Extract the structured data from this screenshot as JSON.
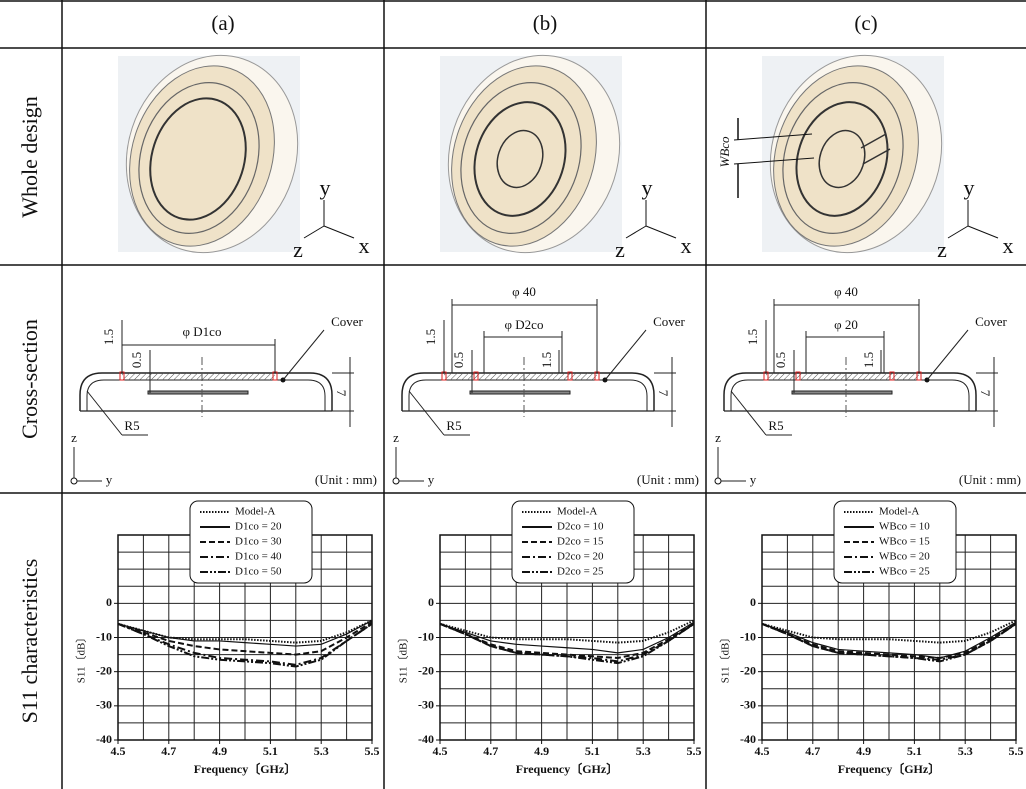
{
  "table": {
    "columns": [
      "(a)",
      "(b)",
      "(c)"
    ],
    "rows": [
      "Whole design",
      "Cross-section",
      "S11 characteristics"
    ]
  },
  "designs": [
    {
      "axes": [
        "y",
        "z",
        "x"
      ]
    },
    {
      "axes": [
        "y",
        "z",
        "x"
      ]
    },
    {
      "axes": [
        "y",
        "z",
        "x"
      ],
      "dimension": "WBco"
    }
  ],
  "cross_sections": [
    {
      "outer_dim": "φ D1co",
      "top": "1.5",
      "gap": "0.5",
      "height": "7",
      "radius": "R5",
      "cover": "Cover",
      "unit": "(Unit : mm)",
      "axis_z": "z",
      "axis_y": "y"
    },
    {
      "outer_dim": "φ 40",
      "inner_dim": "φ D2co",
      "top": "1.5",
      "gap": "0.5",
      "inner_top": "1.5",
      "height": "7",
      "radius": "R5",
      "cover": "Cover",
      "unit": "(Unit : mm)",
      "axis_z": "z",
      "axis_y": "y"
    },
    {
      "outer_dim": "φ 40",
      "inner_dim": "φ 20",
      "top": "1.5",
      "gap": "0.5",
      "inner_top": "1.5",
      "height": "7",
      "radius": "R5",
      "cover": "Cover",
      "unit": "(Unit : mm)",
      "axis_z": "z",
      "axis_y": "y"
    }
  ],
  "chart_data": [
    {
      "type": "line",
      "xlabel": "Frequency〔GHz〕",
      "ylabel": "S11〔dB〕",
      "x": [
        4.5,
        4.6,
        4.7,
        4.8,
        4.9,
        5.0,
        5.1,
        5.2,
        5.3,
        5.4,
        5.5
      ],
      "xlim": [
        4.5,
        5.5
      ],
      "xticks": [
        4.5,
        4.7,
        4.9,
        5.1,
        5.3,
        5.5
      ],
      "ylim": [
        -40,
        20
      ],
      "yticks": [
        -40,
        -30,
        -20,
        -10,
        0
      ],
      "xgrid": [
        4.5,
        4.6,
        4.7,
        4.8,
        4.9,
        5.0,
        5.1,
        5.2,
        5.3,
        5.4,
        5.5
      ],
      "ygrid": [
        -40,
        -35,
        -30,
        -25,
        -20,
        -15,
        -10,
        -5,
        0,
        5,
        10,
        15,
        20
      ],
      "series": [
        {
          "name": "Model-A",
          "color": "#111111",
          "style": "dotted",
          "values": [
            -6,
            -8,
            -10,
            -10.5,
            -10.5,
            -10.5,
            -11,
            -11.5,
            -11,
            -8.5,
            -5
          ]
        },
        {
          "name": "D1co = 20",
          "color": "#111111",
          "style": "solid",
          "values": [
            -6,
            -8,
            -10,
            -11,
            -11,
            -11.5,
            -12,
            -12.5,
            -12,
            -9,
            -5
          ]
        },
        {
          "name": "D1co = 30",
          "color": "#111111",
          "style": "dashed",
          "values": [
            -6,
            -8.5,
            -11,
            -12.5,
            -13.5,
            -14,
            -14.5,
            -15,
            -14,
            -10,
            -5.5
          ]
        },
        {
          "name": "D1co = 40",
          "color": "#111111",
          "style": "dashdot",
          "values": [
            -6,
            -9,
            -12,
            -14.5,
            -16,
            -16.5,
            -17,
            -18,
            -16,
            -11,
            -6
          ]
        },
        {
          "name": "D1co = 50",
          "color": "#111111",
          "style": "dashdotdot",
          "values": [
            -6,
            -9,
            -12.5,
            -15.5,
            -16.5,
            -17,
            -17.5,
            -18.5,
            -16.5,
            -11,
            -6
          ]
        }
      ]
    },
    {
      "type": "line",
      "xlabel": "Frequency〔GHz〕",
      "ylabel": "S11〔dB〕",
      "x": [
        4.5,
        4.6,
        4.7,
        4.8,
        4.9,
        5.0,
        5.1,
        5.2,
        5.3,
        5.4,
        5.5
      ],
      "xlim": [
        4.5,
        5.5
      ],
      "xticks": [
        4.5,
        4.7,
        4.9,
        5.1,
        5.3,
        5.5
      ],
      "ylim": [
        -40,
        20
      ],
      "yticks": [
        -40,
        -30,
        -20,
        -10,
        0
      ],
      "xgrid": [
        4.5,
        4.6,
        4.7,
        4.8,
        4.9,
        5.0,
        5.1,
        5.2,
        5.3,
        5.4,
        5.5
      ],
      "ygrid": [
        -40,
        -35,
        -30,
        -25,
        -20,
        -15,
        -10,
        -5,
        0,
        5,
        10,
        15,
        20
      ],
      "series": [
        {
          "name": "Model-A",
          "color": "#111111",
          "style": "dotted",
          "values": [
            -6,
            -8,
            -10,
            -10.5,
            -10.5,
            -10.5,
            -11,
            -11.5,
            -11,
            -8.5,
            -5
          ]
        },
        {
          "name": "D2co = 10",
          "color": "#111111",
          "style": "solid",
          "values": [
            -6,
            -8.5,
            -11,
            -12,
            -12.5,
            -13,
            -13.5,
            -14.5,
            -13.5,
            -10,
            -5.5
          ]
        },
        {
          "name": "D2co = 15",
          "color": "#111111",
          "style": "dashed",
          "values": [
            -6,
            -9,
            -12,
            -14,
            -14.5,
            -15,
            -15.5,
            -16,
            -14.5,
            -10.5,
            -6
          ]
        },
        {
          "name": "D2co = 20",
          "color": "#111111",
          "style": "dashdot",
          "values": [
            -6,
            -9,
            -12.5,
            -14.5,
            -15,
            -15.5,
            -16,
            -17,
            -15,
            -11,
            -6
          ]
        },
        {
          "name": "D2co = 25",
          "color": "#111111",
          "style": "dashdotdot",
          "values": [
            -6,
            -9,
            -12.5,
            -14.5,
            -15,
            -15.5,
            -16.5,
            -17.5,
            -15.5,
            -11,
            -6
          ]
        }
      ]
    },
    {
      "type": "line",
      "xlabel": "Frequency〔GHz〕",
      "ylabel": "S11〔dB〕",
      "x": [
        4.5,
        4.6,
        4.7,
        4.8,
        4.9,
        5.0,
        5.1,
        5.2,
        5.3,
        5.4,
        5.5
      ],
      "xlim": [
        4.5,
        5.5
      ],
      "xticks": [
        4.5,
        4.7,
        4.9,
        5.1,
        5.3,
        5.5
      ],
      "ylim": [
        -40,
        20
      ],
      "yticks": [
        -40,
        -30,
        -20,
        -10,
        0
      ],
      "xgrid": [
        4.5,
        4.6,
        4.7,
        4.8,
        4.9,
        5.0,
        5.1,
        5.2,
        5.3,
        5.4,
        5.5
      ],
      "ygrid": [
        -40,
        -35,
        -30,
        -25,
        -20,
        -15,
        -10,
        -5,
        0,
        5,
        10,
        15,
        20
      ],
      "series": [
        {
          "name": "Model-A",
          "color": "#111111",
          "style": "dotted",
          "values": [
            -6,
            -8,
            -10,
            -10.5,
            -10.5,
            -10.5,
            -11,
            -11.5,
            -11,
            -8.5,
            -5
          ]
        },
        {
          "name": "WBco = 10",
          "color": "#111111",
          "style": "solid",
          "values": [
            -6,
            -8.5,
            -11.5,
            -13.5,
            -14,
            -14.5,
            -15,
            -16,
            -14,
            -10,
            -5.5
          ]
        },
        {
          "name": "WBco = 15",
          "color": "#111111",
          "style": "dashed",
          "values": [
            -6,
            -9,
            -12,
            -14,
            -14.5,
            -15,
            -15.5,
            -16,
            -14.5,
            -10.5,
            -6
          ]
        },
        {
          "name": "WBco = 20",
          "color": "#111111",
          "style": "dashdot",
          "values": [
            -6,
            -9,
            -12.5,
            -14.5,
            -15,
            -15.5,
            -16,
            -16.5,
            -15,
            -11,
            -6
          ]
        },
        {
          "name": "WBco = 25",
          "color": "#111111",
          "style": "dashdotdot",
          "values": [
            -6,
            -9,
            -12.5,
            -14.5,
            -15,
            -15.5,
            -16,
            -17,
            -15,
            -11,
            -6
          ]
        }
      ]
    }
  ]
}
